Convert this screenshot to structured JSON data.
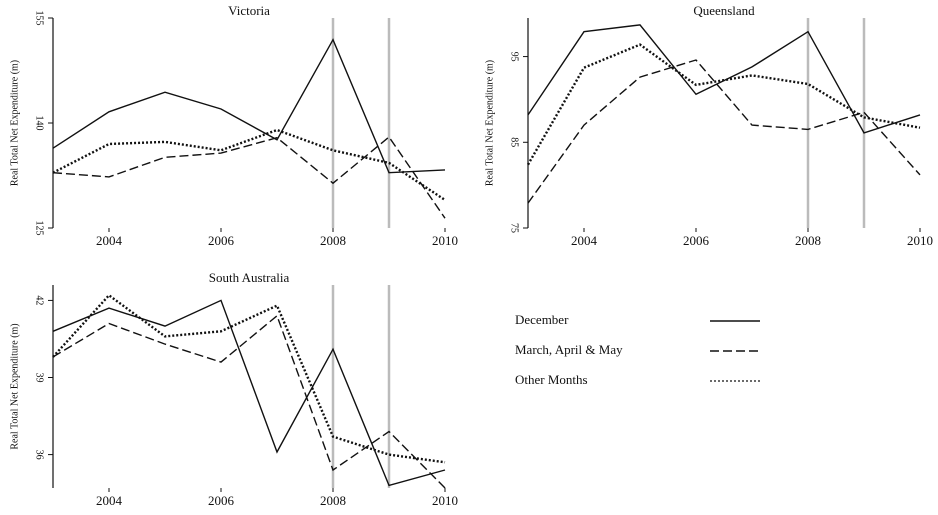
{
  "chart_data": [
    {
      "type": "line",
      "title": "Victoria",
      "ylabel": "Real Total Net Expenditure (m)",
      "x": [
        2003,
        2004,
        2005,
        2006,
        2007,
        2008,
        2009,
        2010
      ],
      "xlim": [
        2003,
        2010
      ],
      "xticks": [
        2004,
        2006,
        2008,
        2010
      ],
      "ylim": [
        125,
        155
      ],
      "yticks": [
        125,
        140,
        155
      ],
      "vlines": [
        2008,
        2009
      ],
      "series": [
        {
          "name": "December",
          "color": "#111111",
          "dash": "solid",
          "values": [
            136.4,
            141.6,
            144.4,
            142,
            137.6,
            151.9,
            132.9,
            133.3
          ]
        },
        {
          "name": "March, April & May",
          "color": "#111111",
          "dash": "dashed",
          "values": [
            132.9,
            132.3,
            135.1,
            135.7,
            137.9,
            131.4,
            138,
            126.4
          ]
        },
        {
          "name": "Other Months",
          "color": "#111111",
          "dash": "dotted",
          "values": [
            132.9,
            137,
            137.3,
            136.1,
            139,
            136.1,
            134.3,
            129
          ]
        }
      ]
    },
    {
      "type": "line",
      "title": "Queensland",
      "ylabel": "Real Total Net Expenditure (m)",
      "x": [
        2003,
        2004,
        2005,
        2006,
        2007,
        2008,
        2009,
        2010
      ],
      "xlim": [
        2003,
        2010
      ],
      "xticks": [
        2004,
        2006,
        2008,
        2010
      ],
      "ylim": [
        75,
        99.5
      ],
      "yticks": [
        75,
        85,
        95
      ],
      "vlines": [
        2008,
        2009
      ],
      "series": [
        {
          "color": "#111111",
          "dash": "solid",
          "values": [
            88.2,
            97.9,
            98.7,
            90.6,
            93.8,
            97.9,
            86.1,
            88.2
          ]
        },
        {
          "color": "#111111",
          "dash": "dashed",
          "values": [
            77.9,
            87,
            92.6,
            94.6,
            87,
            86.5,
            88.5,
            81.2
          ]
        },
        {
          "color": "#111111",
          "dash": "dotted",
          "values": [
            82.4,
            93.7,
            96.4,
            91.7,
            92.8,
            91.8,
            87.9,
            86.7
          ]
        }
      ]
    },
    {
      "type": "line",
      "title": "South Australia",
      "ylabel": "Real Total Net Expenditure (m)",
      "x": [
        2003,
        2004,
        2005,
        2006,
        2007,
        2008,
        2009,
        2010
      ],
      "xlim": [
        2003,
        2010
      ],
      "xticks": [
        2004,
        2006,
        2008,
        2010
      ],
      "ylim": [
        34.7,
        42.6
      ],
      "yticks": [
        36,
        39,
        42
      ],
      "vlines": [
        2008,
        2009
      ],
      "series": [
        {
          "color": "#111111",
          "dash": "solid",
          "values": [
            40.8,
            41.7,
            41.0,
            42,
            36.1,
            40.1,
            34.8,
            35.4
          ]
        },
        {
          "color": "#111111",
          "dash": "dashed",
          "values": [
            39.8,
            41.1,
            40.3,
            39.6,
            41.4,
            35.4,
            36.9,
            34.7
          ]
        },
        {
          "color": "#111111",
          "dash": "dotted",
          "values": [
            39.8,
            42.2,
            40.6,
            40.8,
            41.8,
            36.7,
            36,
            35.7
          ]
        }
      ]
    }
  ]
}
